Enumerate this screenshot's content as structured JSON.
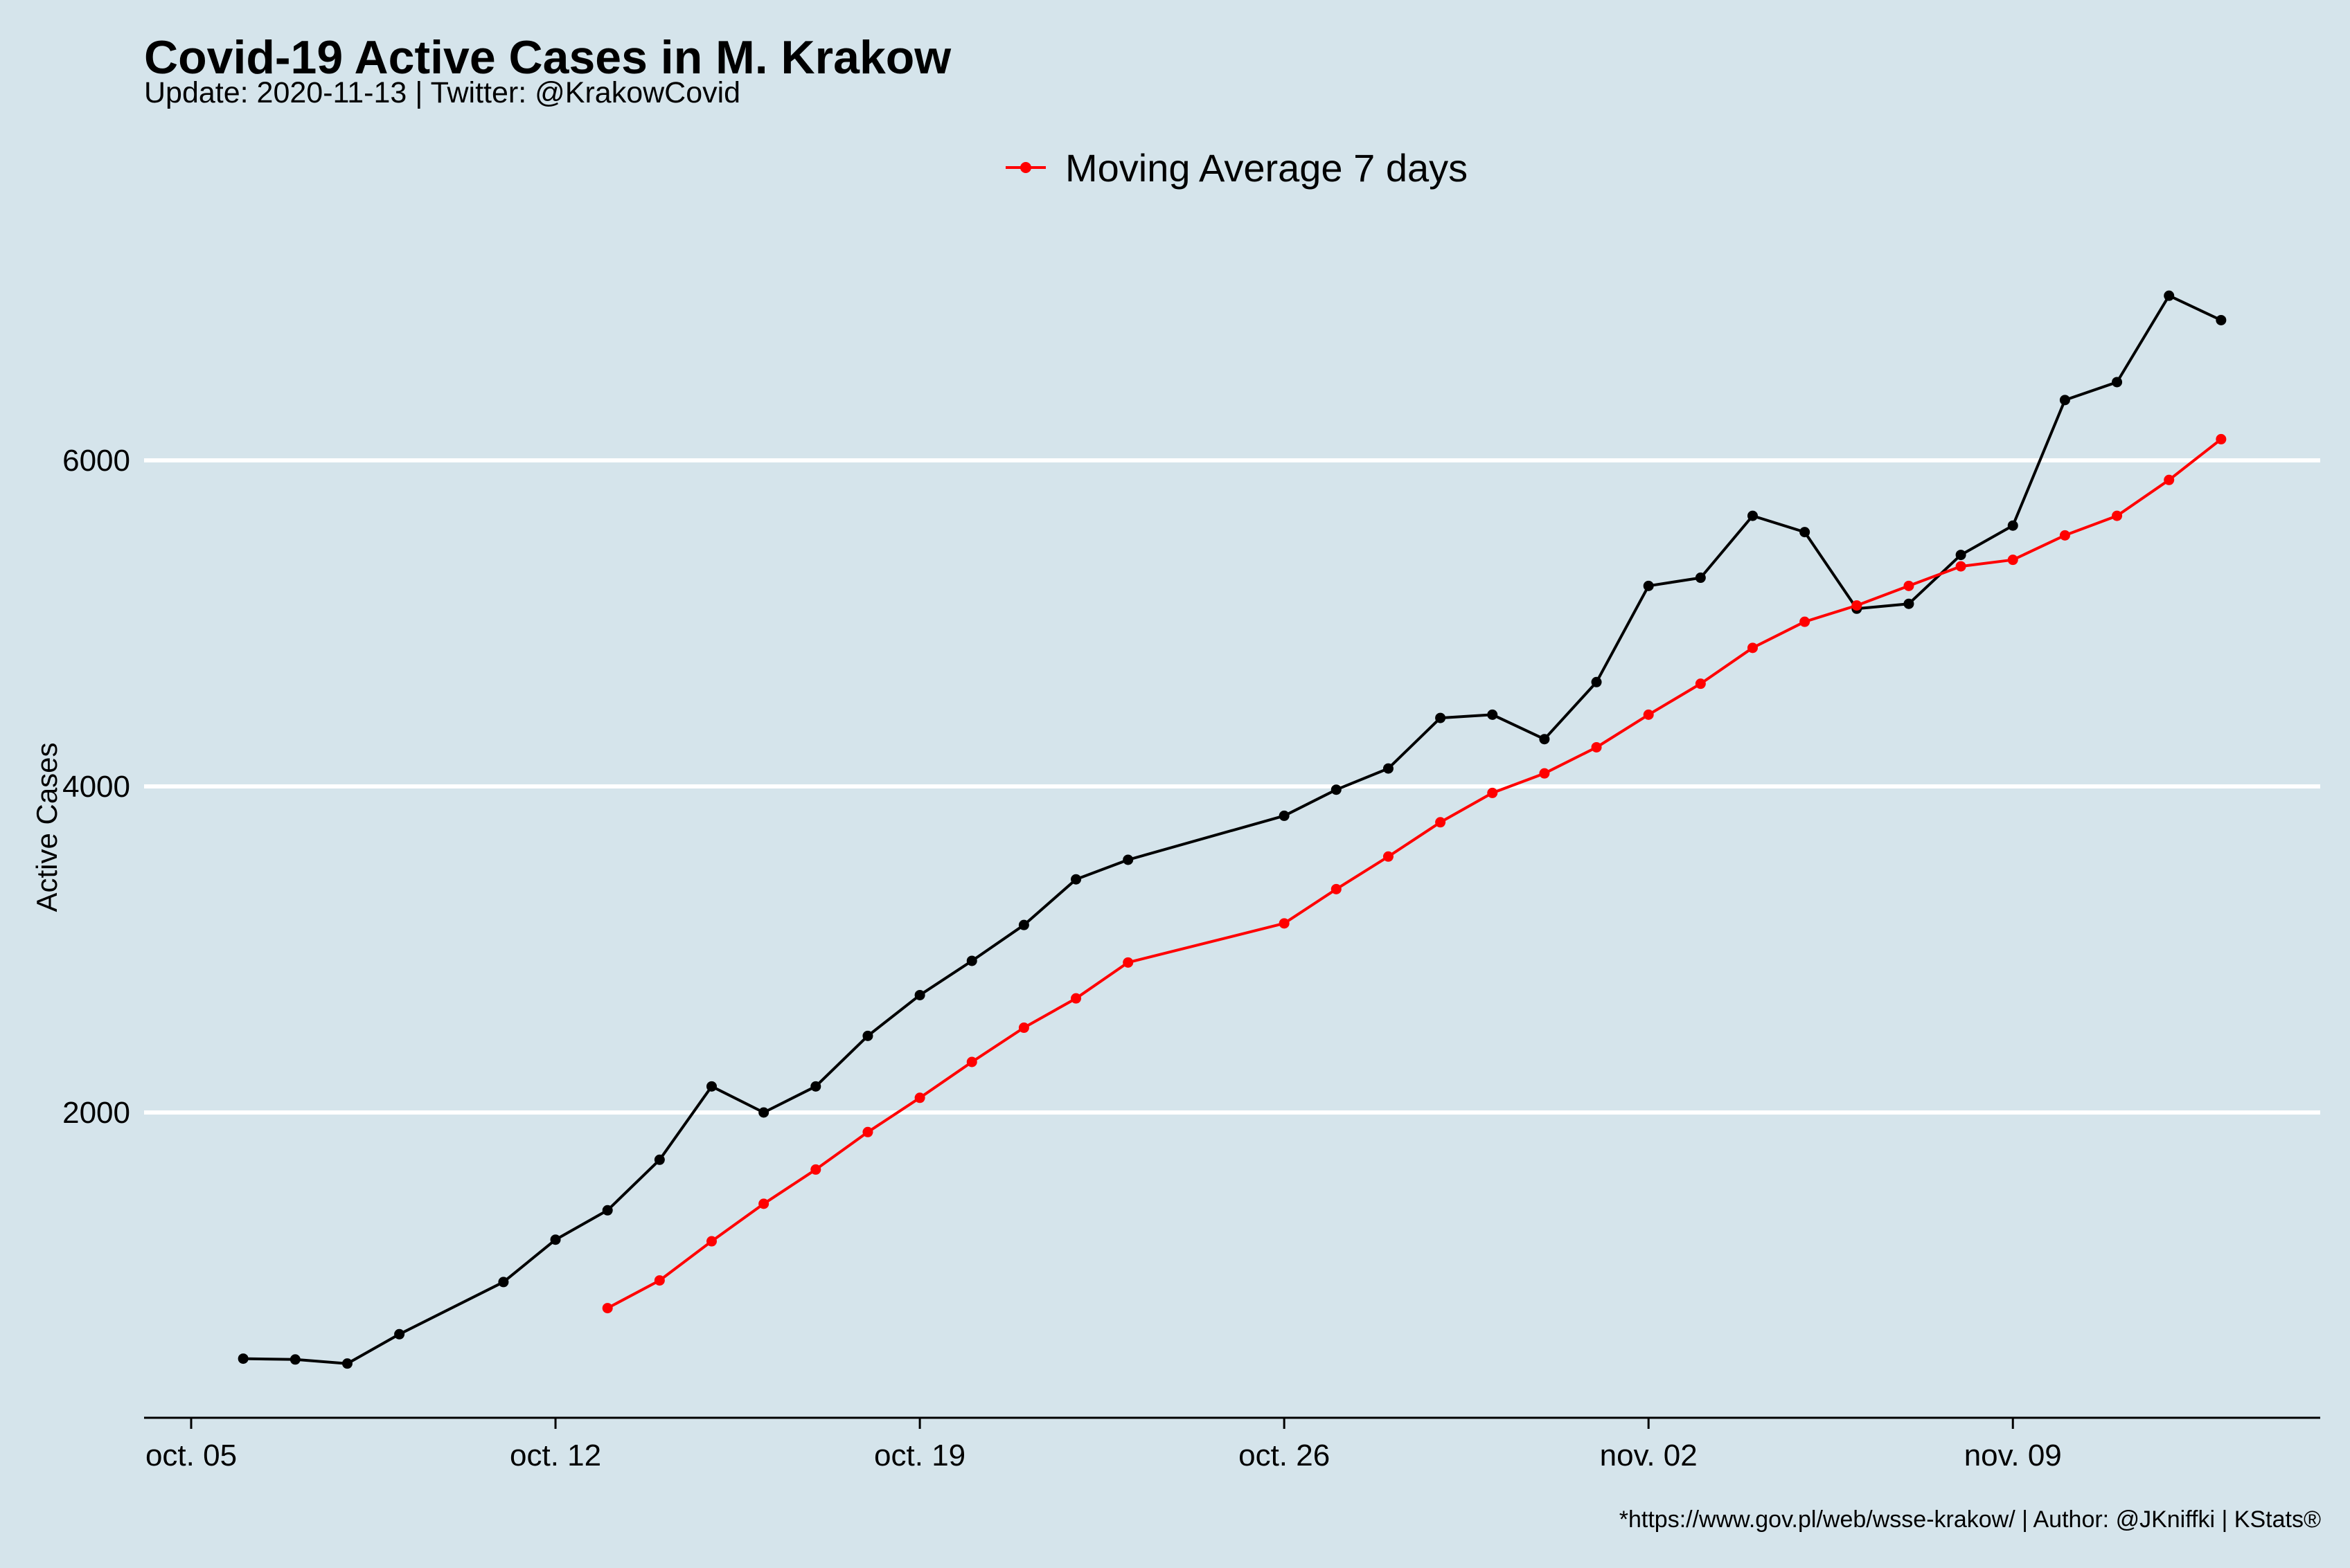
{
  "header": {
    "title": "Covid-19 Active Cases in M. Krakow",
    "subtitle": "Update: 2020-11-13 | Twitter: @KrakowCovid"
  },
  "footer": {
    "caption": "*https://www.gov.pl/web/wsse-krakow/ | Author: @JKniffki | KStats®"
  },
  "colors": {
    "background": "#d5e4eb",
    "active_line": "#000000",
    "moving_average_line": "#ff0000",
    "gridline": "#ffffff"
  },
  "chart_data": {
    "type": "line",
    "title": "Covid-19 Active Cases in M. Krakow",
    "subtitle": "Update: 2020-11-13 | Twitter: @KrakowCovid",
    "xlabel": "",
    "ylabel": "Active Cases",
    "x_tick_labels": [
      "oct. 05",
      "oct. 12",
      "oct. 19",
      "oct. 26",
      "nov. 02",
      "nov. 09"
    ],
    "x_tick_dates": [
      "2020-10-05",
      "2020-10-12",
      "2020-10-19",
      "2020-10-26",
      "2020-11-02",
      "2020-11-09"
    ],
    "y_ticks": [
      2000,
      4000,
      6000
    ],
    "y_tick_labels": [
      "2000",
      "4000",
      "6000"
    ],
    "xlim": [
      "2020-10-04",
      "2020-11-14"
    ],
    "ylim": [
      0,
      7300
    ],
    "grid": "horizontal major only",
    "legend_position": "top",
    "series": [
      {
        "color": "#000000",
        "points": [
          {
            "date": "2020-10-06",
            "value": 490
          },
          {
            "date": "2020-10-07",
            "value": 485
          },
          {
            "date": "2020-10-08",
            "value": 460
          },
          {
            "date": "2020-10-09",
            "value": 640
          },
          {
            "date": "2020-10-11",
            "value": 960
          },
          {
            "date": "2020-10-12",
            "value": 1220
          },
          {
            "date": "2020-10-13",
            "value": 1400
          },
          {
            "date": "2020-10-14",
            "value": 1710
          },
          {
            "date": "2020-10-15",
            "value": 2160
          },
          {
            "date": "2020-10-16",
            "value": 2000
          },
          {
            "date": "2020-10-17",
            "value": 2160
          },
          {
            "date": "2020-10-18",
            "value": 2470
          },
          {
            "date": "2020-10-19",
            "value": 2720
          },
          {
            "date": "2020-10-20",
            "value": 2930
          },
          {
            "date": "2020-10-21",
            "value": 3150
          },
          {
            "date": "2020-10-22",
            "value": 3430
          },
          {
            "date": "2020-10-23",
            "value": 3550
          },
          {
            "date": "2020-10-26",
            "value": 3820
          },
          {
            "date": "2020-10-27",
            "value": 3980
          },
          {
            "date": "2020-10-28",
            "value": 4110
          },
          {
            "date": "2020-10-29",
            "value": 4420
          },
          {
            "date": "2020-10-30",
            "value": 4440
          },
          {
            "date": "2020-10-31",
            "value": 4290
          },
          {
            "date": "2020-11-01",
            "value": 4640
          },
          {
            "date": "2020-11-02",
            "value": 5230
          },
          {
            "date": "2020-11-03",
            "value": 5280
          },
          {
            "date": "2020-11-04",
            "value": 5660
          },
          {
            "date": "2020-11-05",
            "value": 5560
          },
          {
            "date": "2020-11-06",
            "value": 5090
          },
          {
            "date": "2020-11-07",
            "value": 5120
          },
          {
            "date": "2020-11-08",
            "value": 5420
          },
          {
            "date": "2020-11-09",
            "value": 5600
          },
          {
            "date": "2020-11-10",
            "value": 6370
          },
          {
            "date": "2020-11-11",
            "value": 6480
          },
          {
            "date": "2020-11-12",
            "value": 7010
          },
          {
            "date": "2020-11-13",
            "value": 6860
          }
        ]
      },
      {
        "name": "Moving Average 7 days",
        "color": "#ff0000",
        "points": [
          {
            "date": "2020-10-13",
            "value": 800
          },
          {
            "date": "2020-10-14",
            "value": 970
          },
          {
            "date": "2020-10-15",
            "value": 1210
          },
          {
            "date": "2020-10-16",
            "value": 1440
          },
          {
            "date": "2020-10-17",
            "value": 1650
          },
          {
            "date": "2020-10-18",
            "value": 1880
          },
          {
            "date": "2020-10-19",
            "value": 2090
          },
          {
            "date": "2020-10-20",
            "value": 2310
          },
          {
            "date": "2020-10-21",
            "value": 2520
          },
          {
            "date": "2020-10-22",
            "value": 2700
          },
          {
            "date": "2020-10-23",
            "value": 2920
          },
          {
            "date": "2020-10-26",
            "value": 3160
          },
          {
            "date": "2020-10-27",
            "value": 3370
          },
          {
            "date": "2020-10-28",
            "value": 3570
          },
          {
            "date": "2020-10-29",
            "value": 3780
          },
          {
            "date": "2020-10-30",
            "value": 3960
          },
          {
            "date": "2020-10-31",
            "value": 4080
          },
          {
            "date": "2020-11-01",
            "value": 4240
          },
          {
            "date": "2020-11-02",
            "value": 4440
          },
          {
            "date": "2020-11-03",
            "value": 4630
          },
          {
            "date": "2020-11-04",
            "value": 4850
          },
          {
            "date": "2020-11-05",
            "value": 5010
          },
          {
            "date": "2020-11-06",
            "value": 5110
          },
          {
            "date": "2020-11-07",
            "value": 5230
          },
          {
            "date": "2020-11-08",
            "value": 5350
          },
          {
            "date": "2020-11-09",
            "value": 5390
          },
          {
            "date": "2020-11-10",
            "value": 5540
          },
          {
            "date": "2020-11-11",
            "value": 5660
          },
          {
            "date": "2020-11-12",
            "value": 5880
          },
          {
            "date": "2020-11-13",
            "value": 6130
          }
        ]
      }
    ]
  }
}
